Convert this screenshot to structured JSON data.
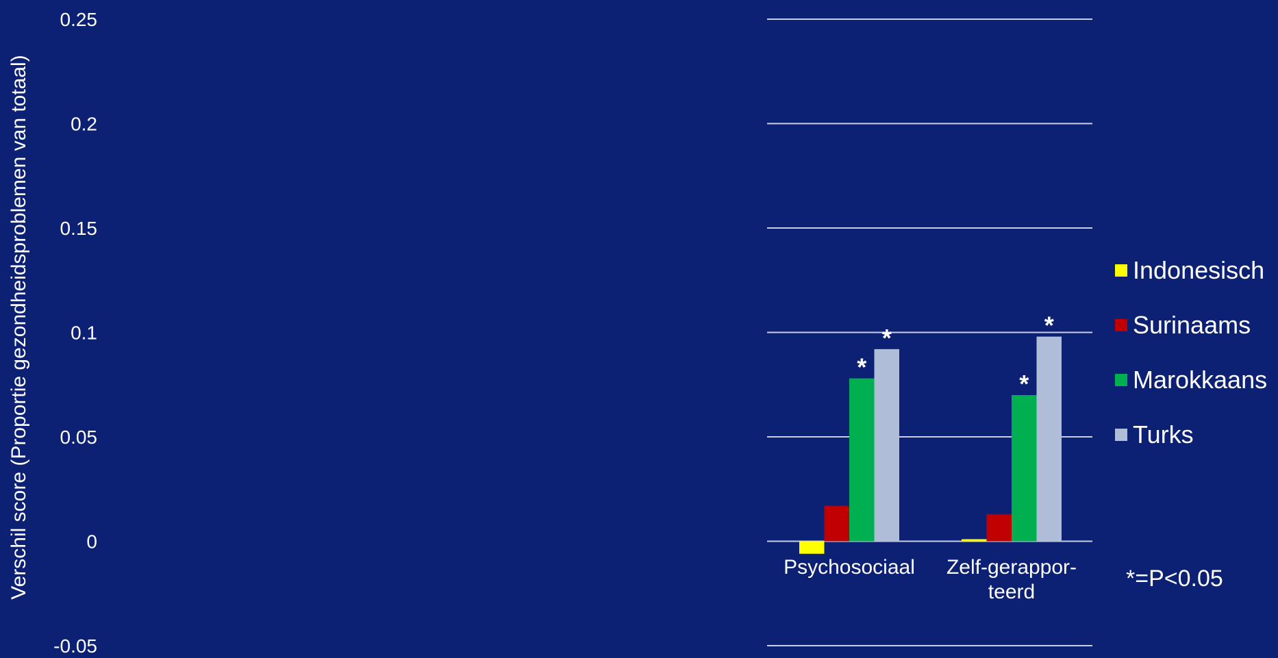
{
  "chart_data": {
    "type": "bar",
    "categories": [
      "Psychosociaal",
      "Zelf-gerappor-teerd"
    ],
    "category_lines": [
      [
        "Psychosociaal"
      ],
      [
        "Zelf-gerappor-",
        "teerd"
      ]
    ],
    "series": [
      {
        "name": "Indonesisch",
        "values": [
          -0.006,
          0.001
        ],
        "color": "#ffff00",
        "significant": [
          false,
          false
        ]
      },
      {
        "name": "Surinaams",
        "values": [
          0.017,
          0.013
        ],
        "color": "#c00000",
        "significant": [
          false,
          false
        ]
      },
      {
        "name": "Marokkaans",
        "values": [
          0.078,
          0.07
        ],
        "color": "#00b050",
        "significant": [
          true,
          true
        ]
      },
      {
        "name": "Turks",
        "values": [
          0.092,
          0.098
        ],
        "color": "#b0bdd9",
        "significant": [
          true,
          true
        ]
      }
    ],
    "significance_mark": "*",
    "ylabel": "Verschil score (Proportie gezondheidsproblemen van totaal)",
    "ylim": [
      -0.05,
      0.25
    ],
    "yticks": [
      0.25,
      0.2,
      0.15,
      0.1,
      0.05,
      0,
      -0.05
    ],
    "ytick_labels": [
      "0.25",
      "0.2",
      "0.15",
      "0.1",
      "0.05",
      "0",
      "-0.05"
    ],
    "grid": true,
    "legend_position": "right",
    "note": "*=P<0.05"
  }
}
